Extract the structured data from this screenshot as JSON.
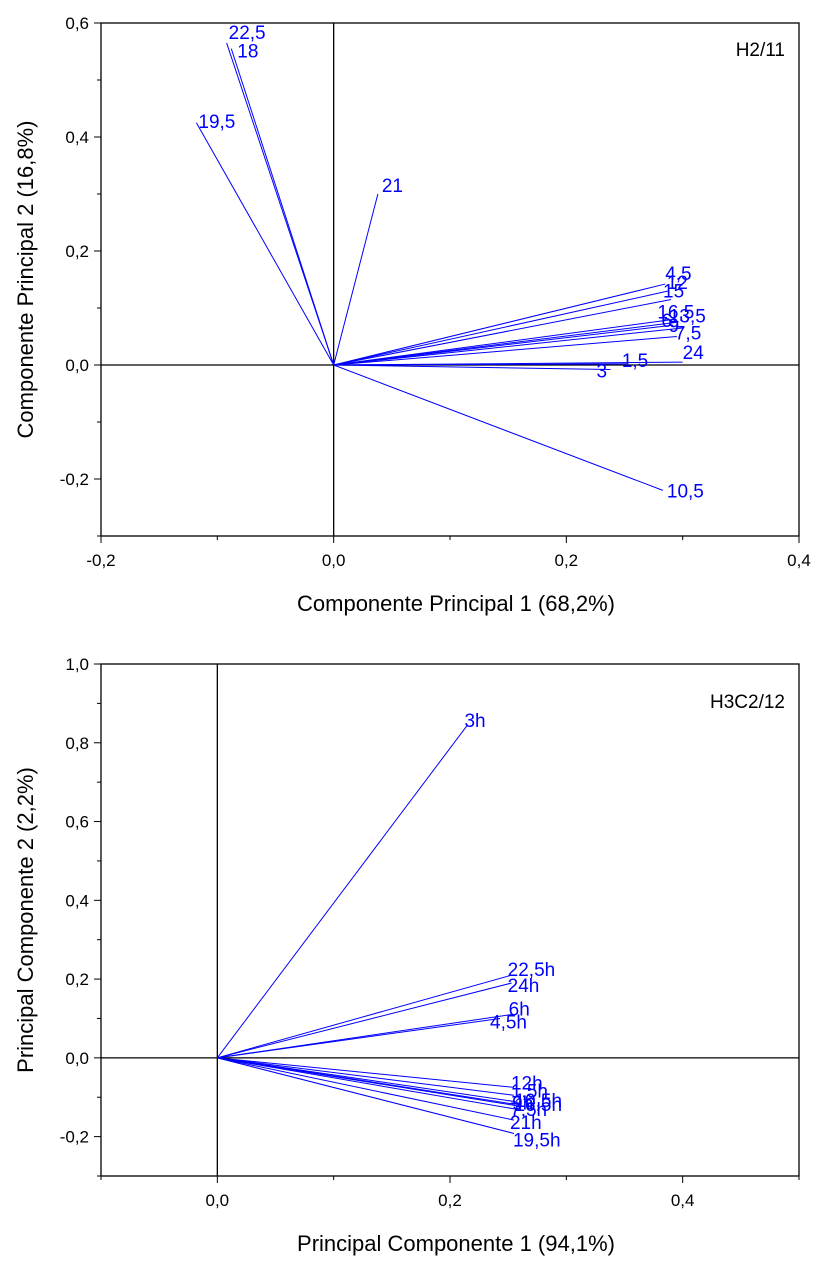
{
  "chart_data": [
    {
      "type": "biplot",
      "title": "H2/11",
      "xlabel": "Componente Principal 1 (68,2%)",
      "ylabel": "Componente Principal 2 (16,8%)",
      "xlim": [
        -0.2,
        0.4
      ],
      "ylim": [
        -0.3,
        0.6
      ],
      "xticks": [
        -0.2,
        0.0,
        0.2,
        0.4
      ],
      "xtick_labels": [
        "-0,2",
        "0,0",
        "0,2",
        "0,4"
      ],
      "yticks": [
        -0.2,
        0.0,
        0.2,
        0.4,
        0.6
      ],
      "ytick_labels": [
        "-0,2",
        "0,0",
        "0,2",
        "0,4",
        "0,6"
      ],
      "vector_color": "#0000ff",
      "vectors": [
        {
          "label": "22,5",
          "x": -0.092,
          "y": 0.565
        },
        {
          "label": "18",
          "x": -0.088,
          "y": 0.555
        },
        {
          "label": "19,5",
          "x": -0.118,
          "y": 0.425
        },
        {
          "label": "21",
          "x": 0.038,
          "y": 0.3
        },
        {
          "label": "4,5",
          "x": 0.285,
          "y": 0.142
        },
        {
          "label": "12",
          "x": 0.288,
          "y": 0.13
        },
        {
          "label": "15",
          "x": 0.29,
          "y": 0.115
        },
        {
          "label": "16,5",
          "x": 0.292,
          "y": 0.08
        },
        {
          "label": "13,5",
          "x": 0.295,
          "y": 0.075
        },
        {
          "label": "6",
          "x": 0.292,
          "y": 0.07
        },
        {
          "label": "9",
          "x": 0.3,
          "y": 0.065
        },
        {
          "label": "7,5",
          "x": 0.295,
          "y": 0.05
        },
        {
          "label": "24",
          "x": 0.3,
          "y": 0.005
        },
        {
          "label": "1,5",
          "x": 0.252,
          "y": 0.002
        },
        {
          "label": "3",
          "x": 0.238,
          "y": -0.008
        },
        {
          "label": "10,5",
          "x": 0.283,
          "y": -0.22
        }
      ]
    },
    {
      "type": "biplot",
      "title": "H3C2/12",
      "xlabel": "Principal Componente 1 (94,1%)",
      "ylabel": "Principal Componente 2 (2,2%)",
      "xlim": [
        -0.1,
        0.5
      ],
      "ylim": [
        -0.3,
        1.0
      ],
      "xticks": [
        0.0,
        0.2,
        0.4
      ],
      "xtick_labels": [
        "0,0",
        "0,2",
        "0,4"
      ],
      "yticks": [
        -0.2,
        0.0,
        0.2,
        0.4,
        0.6,
        0.8,
        1.0
      ],
      "ytick_labels": [
        "-0,2",
        "0,0",
        "0,2",
        "0,4",
        "0,6",
        "0,8",
        "1,0"
      ],
      "vector_color": "#0000ff",
      "vectors": [
        {
          "label": "3h",
          "x": 0.215,
          "y": 0.845
        },
        {
          "label": "22,5h",
          "x": 0.253,
          "y": 0.21
        },
        {
          "label": "24h",
          "x": 0.253,
          "y": 0.19
        },
        {
          "label": "6h",
          "x": 0.253,
          "y": 0.11
        },
        {
          "label": "4,5h",
          "x": 0.243,
          "y": 0.1
        },
        {
          "label": "12h",
          "x": 0.255,
          "y": -0.075
        },
        {
          "label": "1,5h",
          "x": 0.255,
          "y": -0.095
        },
        {
          "label": "10,5h",
          "x": 0.258,
          "y": -0.112
        },
        {
          "label": "9h",
          "x": 0.256,
          "y": -0.118
        },
        {
          "label": "16,5h",
          "x": 0.258,
          "y": -0.122
        },
        {
          "label": "7,5h",
          "x": 0.256,
          "y": -0.13
        },
        {
          "label": "21h",
          "x": 0.255,
          "y": -0.158
        },
        {
          "label": "19,5h",
          "x": 0.255,
          "y": -0.192
        }
      ]
    }
  ]
}
